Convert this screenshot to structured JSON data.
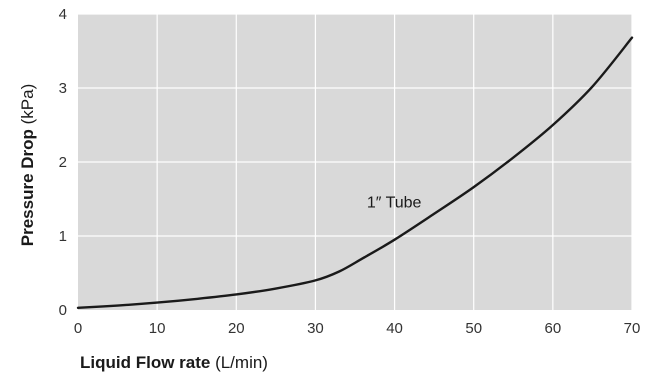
{
  "chart_data": {
    "type": "line",
    "title": "",
    "xlabel": {
      "bold": "Liquid Flow rate",
      "unit": " (L/min)"
    },
    "ylabel": {
      "bold": "Pressure Drop",
      "unit": " (kPa)"
    },
    "xlim": [
      0,
      70
    ],
    "ylim": [
      0,
      4
    ],
    "xticks": [
      0,
      10,
      20,
      30,
      40,
      50,
      60,
      70
    ],
    "yticks": [
      0,
      1,
      2,
      3,
      4
    ],
    "grid": true,
    "colors": {
      "plot_background": "#d9d9d9",
      "grid": "#ffffff",
      "line": "#1a1a1a"
    },
    "series": [
      {
        "annotation": "1″ Tube",
        "annotation_at": {
          "x": 36.5,
          "y": 1.45
        },
        "x": [
          0,
          5,
          10,
          15,
          20,
          25,
          30,
          33,
          36,
          40,
          45,
          50,
          55,
          60,
          65,
          70
        ],
        "y": [
          0.03,
          0.06,
          0.1,
          0.15,
          0.21,
          0.29,
          0.4,
          0.52,
          0.7,
          0.95,
          1.3,
          1.66,
          2.06,
          2.5,
          3.02,
          3.68
        ]
      }
    ]
  }
}
